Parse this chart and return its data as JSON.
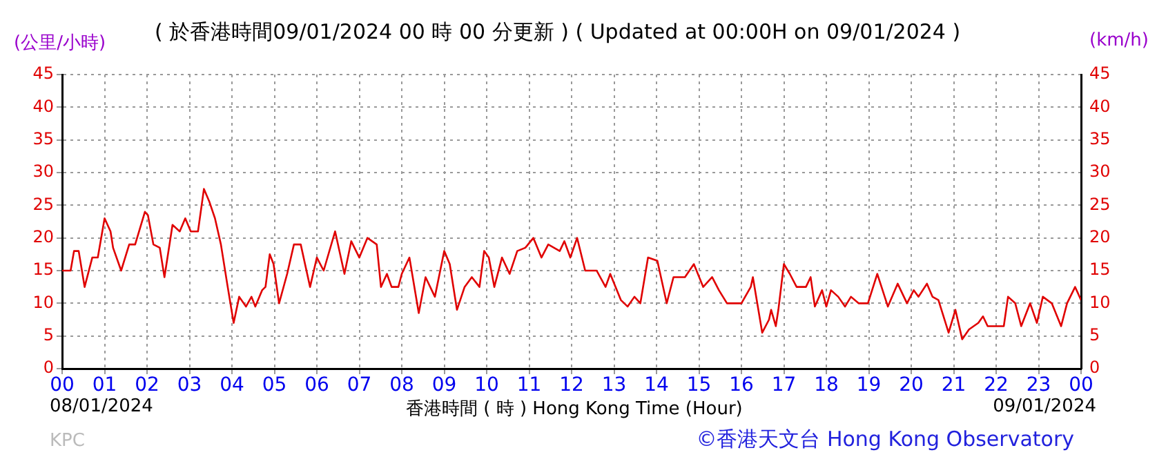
{
  "chart_data": {
    "type": "line",
    "title": "( 於香港時間09/01/2024 00 時 00 分更新 ) ( Updated at 00:00H on 09/01/2024 )",
    "xlabel": "香港時間 ( 時 ) Hong Kong Time (Hour)",
    "ylabel": "(公里/小時)",
    "y2label": "(km/h)",
    "annotations": [
      "08/01/2024",
      "09/01/2024",
      "KPC",
      "©香港天文台 Hong Kong Observatory"
    ],
    "x": [
      0,
      0.2,
      0.28,
      0.39,
      0.53,
      0.71,
      0.84,
      1.0,
      1.14,
      1.2,
      1.39,
      1.58,
      1.72,
      1.95,
      2.02,
      2.15,
      2.3,
      2.41,
      2.6,
      2.77,
      2.9,
      3.03,
      3.2,
      3.34,
      3.47,
      3.6,
      3.74,
      3.9,
      4.04,
      4.17,
      4.33,
      4.46,
      4.55,
      4.71,
      4.79,
      4.89,
      4.98,
      5.11,
      5.3,
      5.46,
      5.62,
      5.84,
      6.0,
      6.16,
      6.43,
      6.65,
      6.81,
      7.0,
      7.19,
      7.41,
      7.51,
      7.65,
      7.76,
      7.92,
      8.0,
      8.18,
      8.4,
      8.56,
      8.78,
      9.0,
      9.13,
      9.3,
      9.48,
      9.65,
      9.83,
      9.94,
      10.05,
      10.18,
      10.36,
      10.54,
      10.72,
      10.91,
      11.1,
      11.29,
      11.45,
      11.72,
      11.83,
      11.97,
      12.13,
      12.32,
      12.59,
      12.8,
      12.91,
      13.16,
      13.32,
      13.48,
      13.62,
      13.8,
      14.02,
      14.24,
      14.4,
      14.67,
      14.88,
      15.1,
      15.31,
      15.47,
      15.66,
      16.0,
      16.22,
      16.27,
      16.49,
      16.65,
      16.7,
      16.81,
      16.87,
      17.0,
      17.14,
      17.3,
      17.52,
      17.63,
      17.73,
      17.9,
      18.0,
      18.11,
      18.28,
      18.44,
      18.58,
      18.76,
      18.98,
      19.2,
      19.3,
      19.45,
      19.68,
      19.9,
      20.06,
      20.17,
      20.37,
      20.5,
      20.64,
      20.88,
      21.04,
      21.2,
      21.36,
      21.58,
      21.69,
      21.8,
      22.18,
      22.28,
      22.45,
      22.59,
      22.8,
      22.96,
      23.1,
      23.31,
      23.53,
      23.67,
      23.86,
      24.0
    ],
    "series": [
      {
        "color": "#e00000",
        "values": [
          15,
          15,
          18,
          18,
          12.5,
          17,
          17,
          23,
          21,
          18.5,
          15,
          19,
          19,
          24,
          23.5,
          19,
          18.5,
          14,
          22,
          21,
          23,
          21,
          21,
          27.5,
          25.5,
          23,
          19,
          12.5,
          7,
          11,
          9.5,
          11,
          9.5,
          12,
          12.5,
          17.5,
          16,
          10,
          14.5,
          19,
          19,
          12.5,
          17,
          15,
          21,
          14.5,
          19.5,
          17,
          20,
          19,
          12.5,
          14.5,
          12.5,
          12.5,
          14.5,
          17,
          8.5,
          14,
          11,
          18,
          16,
          9,
          12.5,
          14,
          12.5,
          18,
          17,
          12.5,
          17,
          14.5,
          18,
          18.5,
          20,
          17,
          19,
          18,
          19.5,
          17,
          20,
          15,
          15,
          12.5,
          14.5,
          10.5,
          9.5,
          11,
          10,
          17,
          16.5,
          10,
          14,
          14,
          16,
          12.5,
          14,
          12,
          10,
          10,
          12.5,
          14,
          5.5,
          7.5,
          9,
          6.5,
          9,
          16,
          14.5,
          12.5,
          12.5,
          14,
          9.5,
          12,
          9.5,
          12,
          11,
          9.5,
          11,
          10,
          10,
          14.5,
          12.5,
          9.5,
          13,
          10,
          12,
          11,
          13,
          11,
          10.5,
          5.5,
          9,
          4.5,
          6,
          7,
          8,
          6.5,
          6.5,
          11,
          10,
          6.5,
          10,
          7,
          11,
          10,
          6.5,
          10,
          12.5,
          10.5
        ]
      }
    ],
    "xlim": [
      0,
      24
    ],
    "xticks": [
      {
        "value": 0,
        "label": "00"
      },
      {
        "value": 1,
        "label": "01"
      },
      {
        "value": 2,
        "label": "02"
      },
      {
        "value": 3,
        "label": "03"
      },
      {
        "value": 4,
        "label": "04"
      },
      {
        "value": 5,
        "label": "05"
      },
      {
        "value": 6,
        "label": "06"
      },
      {
        "value": 7,
        "label": "07"
      },
      {
        "value": 8,
        "label": "08"
      },
      {
        "value": 9,
        "label": "09"
      },
      {
        "value": 10,
        "label": "10"
      },
      {
        "value": 11,
        "label": "11"
      },
      {
        "value": 12,
        "label": "12"
      },
      {
        "value": 13,
        "label": "13"
      },
      {
        "value": 14,
        "label": "14"
      },
      {
        "value": 15,
        "label": "15"
      },
      {
        "value": 16,
        "label": "16"
      },
      {
        "value": 17,
        "label": "17"
      },
      {
        "value": 18,
        "label": "18"
      },
      {
        "value": 19,
        "label": "19"
      },
      {
        "value": 20,
        "label": "20"
      },
      {
        "value": 21,
        "label": "21"
      },
      {
        "value": 22,
        "label": "22"
      },
      {
        "value": 23,
        "label": "23"
      },
      {
        "value": 24,
        "label": "00"
      }
    ],
    "ylim": [
      0,
      45
    ],
    "yticks": [
      0,
      5,
      10,
      15,
      20,
      25,
      30,
      35,
      40,
      45
    ],
    "y2lim": [
      0,
      45
    ],
    "y2ticks": [
      0,
      5,
      10,
      15,
      20,
      25,
      30,
      35,
      40,
      45
    ],
    "grid": true,
    "marker": "none",
    "line_style": "solid"
  }
}
